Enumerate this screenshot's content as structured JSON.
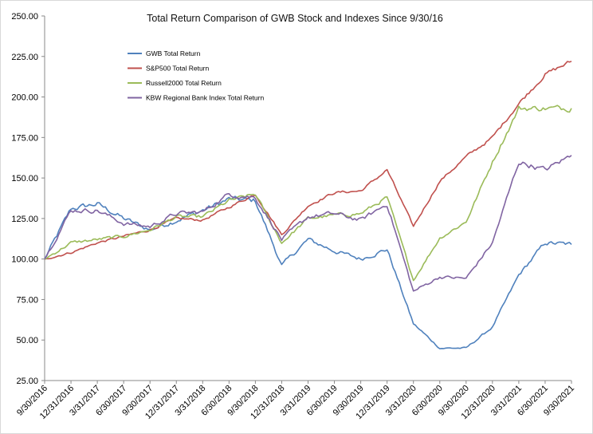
{
  "chart_data": {
    "type": "line",
    "title": "Total Return Comparison of GWB Stock and Indexes Since 9/30/16",
    "xlabel": "",
    "ylabel": "",
    "ylim": [
      25,
      250
    ],
    "y_ticks": [
      "25.00",
      "50.00",
      "75.00",
      "100.00",
      "125.00",
      "150.00",
      "175.00",
      "200.00",
      "225.00",
      "250.00"
    ],
    "y_tick_values": [
      25,
      50,
      75,
      100,
      125,
      150,
      175,
      200,
      225,
      250
    ],
    "categories": [
      "9/30/2016",
      "12/31/2016",
      "3/31/2017",
      "6/30/2017",
      "9/30/2017",
      "12/31/2017",
      "3/31/2018",
      "6/30/2018",
      "9/30/2018",
      "12/31/2018",
      "3/31/2019",
      "6/30/2019",
      "9/30/2019",
      "12/31/2019",
      "3/31/2020",
      "6/30/2020",
      "9/30/2020",
      "12/31/2020",
      "3/31/2021",
      "6/30/2021",
      "9/30/2021"
    ],
    "grid": false,
    "legend_position": "top-left",
    "series": [
      {
        "name": "GWB Total Return",
        "color": "#4f81bd",
        "values": [
          100,
          131,
          134,
          125,
          118,
          124,
          130,
          137,
          136,
          96,
          112,
          105,
          100,
          106,
          60,
          45,
          45,
          58,
          90,
          110,
          109
        ]
      },
      {
        "name": "S&P500 Total Return",
        "color": "#c0504d",
        "values": [
          100,
          104,
          110,
          114,
          118,
          125,
          124,
          132,
          140,
          115,
          133,
          141,
          142,
          155,
          120,
          148,
          163,
          175,
          196,
          214,
          222
        ]
      },
      {
        "name": "Russell2000 Total Return",
        "color": "#9bbb59",
        "values": [
          100,
          110,
          112,
          114,
          118,
          126,
          126,
          136,
          140,
          110,
          125,
          127,
          128,
          138,
          87,
          113,
          123,
          160,
          193,
          193,
          193
        ]
      },
      {
        "name": "KBW Regional Bank Index Total Return",
        "color": "#8064a2",
        "values": [
          100,
          130,
          130,
          122,
          120,
          128,
          129,
          140,
          138,
          112,
          126,
          128,
          124,
          134,
          80,
          89,
          88,
          110,
          160,
          155,
          164
        ]
      }
    ]
  }
}
